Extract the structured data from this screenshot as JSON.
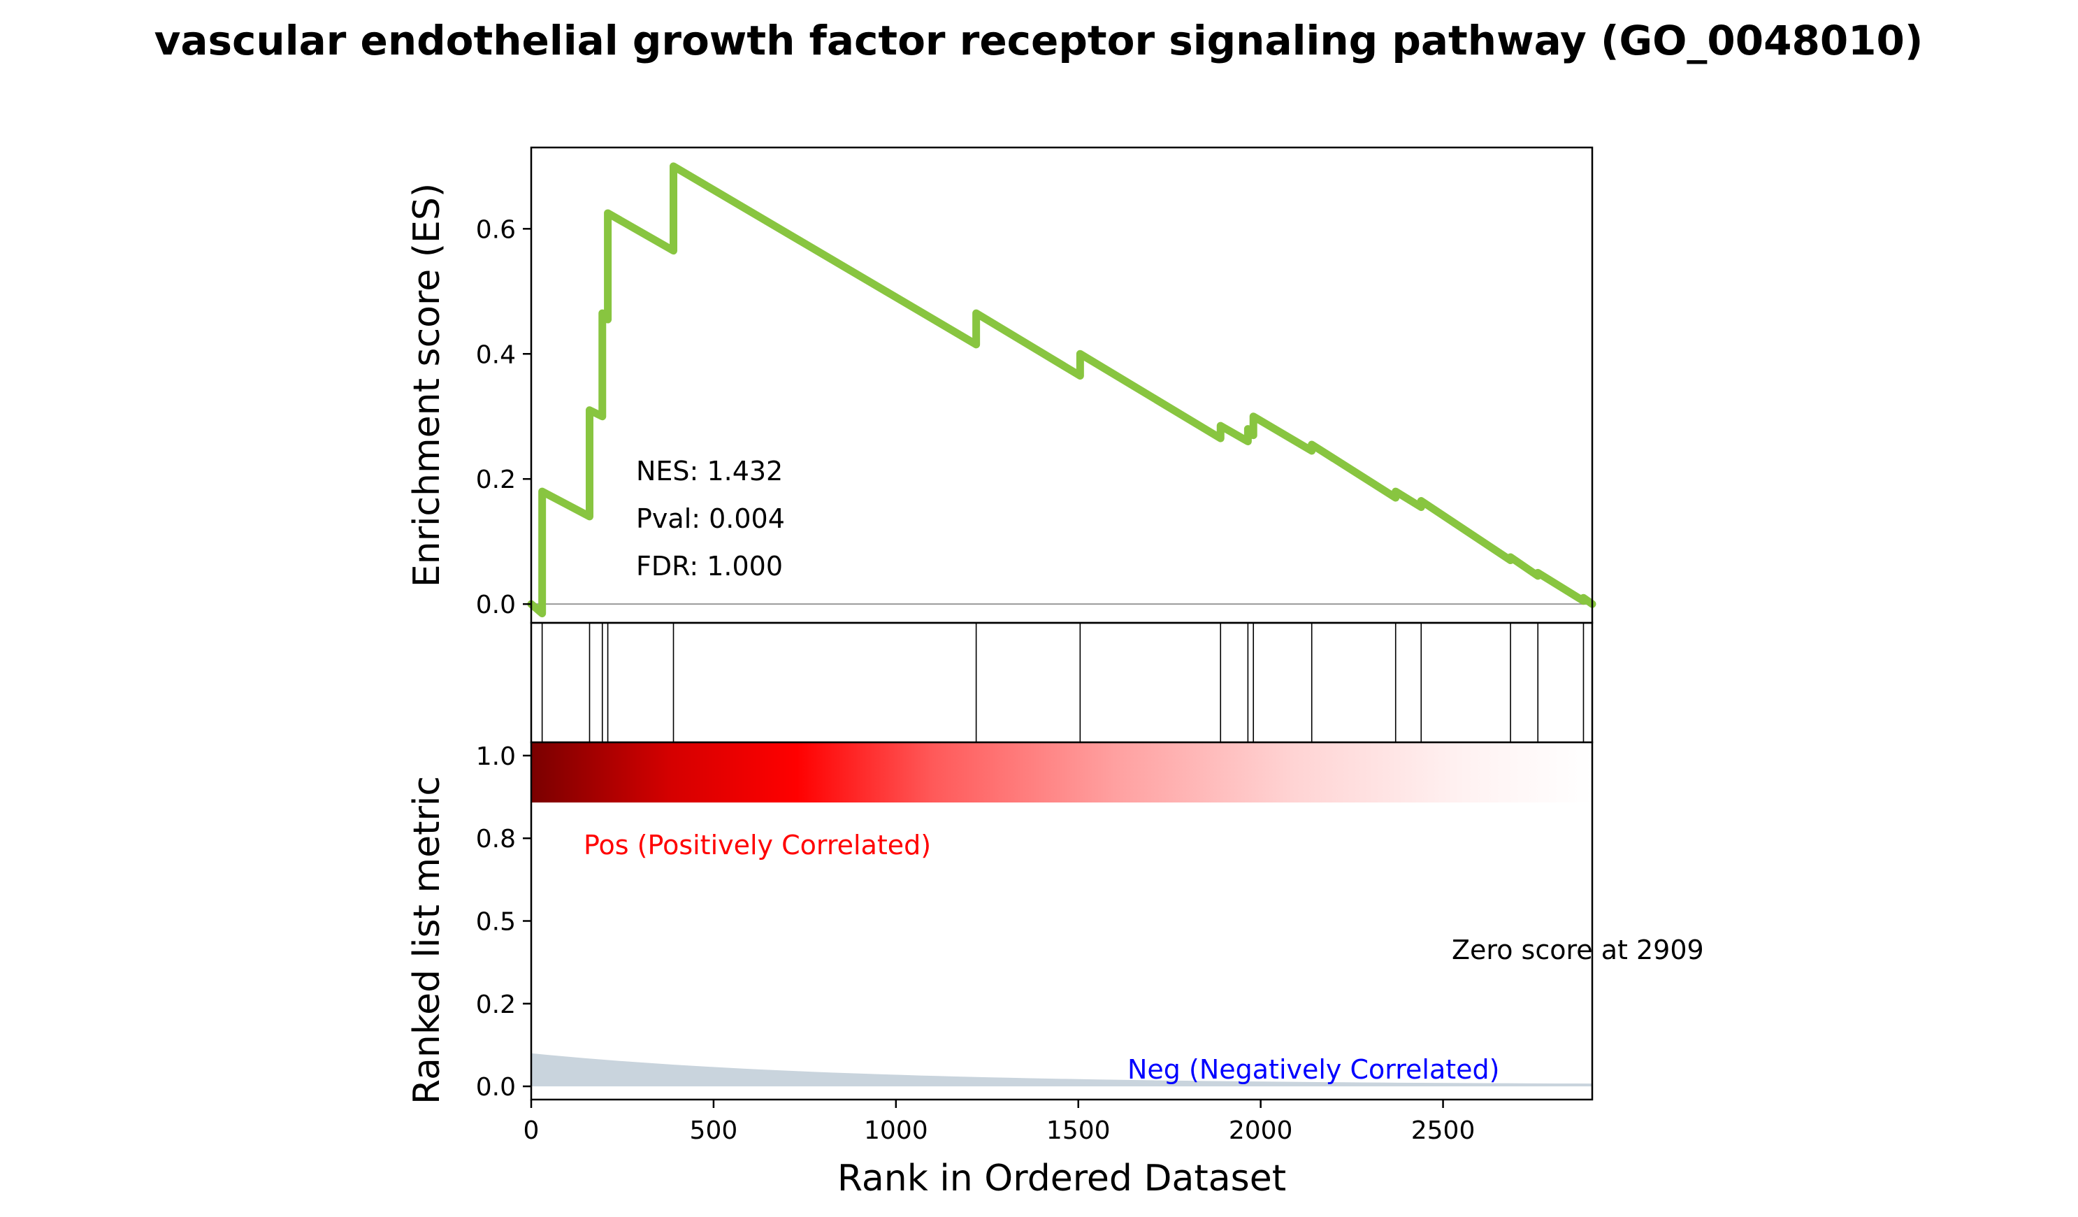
{
  "figure": {
    "title": "vascular endothelial growth factor receptor signaling pathway (GO_0048010)"
  },
  "chart_data": {
    "type": "line",
    "title": "vascular endothelial growth factor receptor signaling pathway (GO_0048010)",
    "xlabel": "Rank in Ordered Dataset",
    "xlim": [
      0,
      2909
    ],
    "x_ticks": [
      0,
      500,
      1000,
      1500,
      2000,
      2500
    ],
    "x_tick_labels": [
      "0",
      "500",
      "1000",
      "1500",
      "2000",
      "2500"
    ],
    "enrichment": {
      "ylabel": "Enrichment score (ES)",
      "ylim": [
        -0.03,
        0.73
      ],
      "y_ticks": [
        0.0,
        0.2,
        0.4,
        0.6
      ],
      "y_tick_labels": [
        "0.0",
        "0.2",
        "0.4",
        "0.6"
      ],
      "color": "#88c540",
      "hit_ranks": [
        30,
        160,
        195,
        210,
        390,
        1220,
        1505,
        1890,
        1965,
        1980,
        2140,
        2370,
        2440,
        2685,
        2760,
        2885
      ],
      "es_at_hits": [
        0.18,
        0.31,
        0.465,
        0.625,
        0.7,
        0.465,
        0.4,
        0.285,
        0.28,
        0.3,
        0.255,
        0.18,
        0.165,
        0.075,
        0.05,
        0.01
      ],
      "es_before_hits": [
        -0.015,
        0.14,
        0.3,
        0.455,
        0.565,
        0.415,
        0.365,
        0.265,
        0.26,
        0.27,
        0.245,
        0.17,
        0.155,
        0.07,
        0.045,
        0.005
      ],
      "es_end": 0.0,
      "nes_text": "NES: 1.432",
      "pval_text": "Pval: 0.004",
      "fdr_text": "FDR: 1.000"
    },
    "ranked_metric": {
      "ylabel": "Ranked list metric",
      "ylim": [
        -0.04,
        1.04
      ],
      "y_ticks": [
        0.0,
        0.25,
        0.5,
        0.75,
        1.0
      ],
      "y_tick_labels": [
        "0.0",
        "0.2",
        "0.5",
        "0.8",
        "1.0"
      ],
      "metric_start": 0.1,
      "metric_end": 0.005,
      "fill_color": "#c9d4dd",
      "pos_label": "Pos (Positively Correlated)",
      "neg_label": "Neg (Negatively Correlated)",
      "zero_score_text": "Zero score at 2909"
    }
  }
}
